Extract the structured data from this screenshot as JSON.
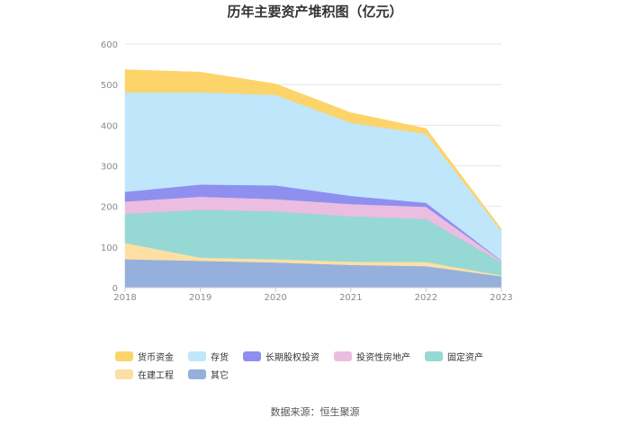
{
  "chart_data": {
    "type": "area",
    "stacked": true,
    "title": "历年主要资产堆积图（亿元）",
    "x": [
      "2018",
      "2019",
      "2020",
      "2021",
      "2022",
      "2023"
    ],
    "ylim": [
      0,
      600
    ],
    "yticks": [
      0,
      100,
      200,
      300,
      400,
      500,
      600
    ],
    "grid": true,
    "legend_position": "bottom",
    "series": [
      {
        "name": "其它",
        "color": "#95b0dd",
        "values": [
          70,
          66,
          62,
          56,
          53,
          28
        ]
      },
      {
        "name": "在建工程",
        "color": "#fddfa4",
        "values": [
          40,
          8,
          8,
          8,
          10,
          2
        ]
      },
      {
        "name": "固定资产",
        "color": "#96d9d4",
        "values": [
          72,
          118,
          118,
          112,
          106,
          33
        ]
      },
      {
        "name": "投资性房地产",
        "color": "#ebbde0",
        "values": [
          30,
          32,
          30,
          30,
          30,
          3
        ]
      },
      {
        "name": "长期股权投资",
        "color": "#8f8ff0",
        "values": [
          24,
          30,
          34,
          20,
          10,
          1
        ]
      },
      {
        "name": "存货",
        "color": "#bfe6fb",
        "values": [
          245,
          227,
          223,
          180,
          170,
          73
        ]
      },
      {
        "name": "货币资金",
        "color": "#fdd46a",
        "values": [
          56,
          50,
          27,
          25,
          13,
          5
        ]
      }
    ],
    "legend_order": [
      "货币资金",
      "存货",
      "长期股权投资",
      "投资性房地产",
      "固定资产",
      "在建工程",
      "其它"
    ],
    "source": "数据来源：恒生聚源"
  }
}
